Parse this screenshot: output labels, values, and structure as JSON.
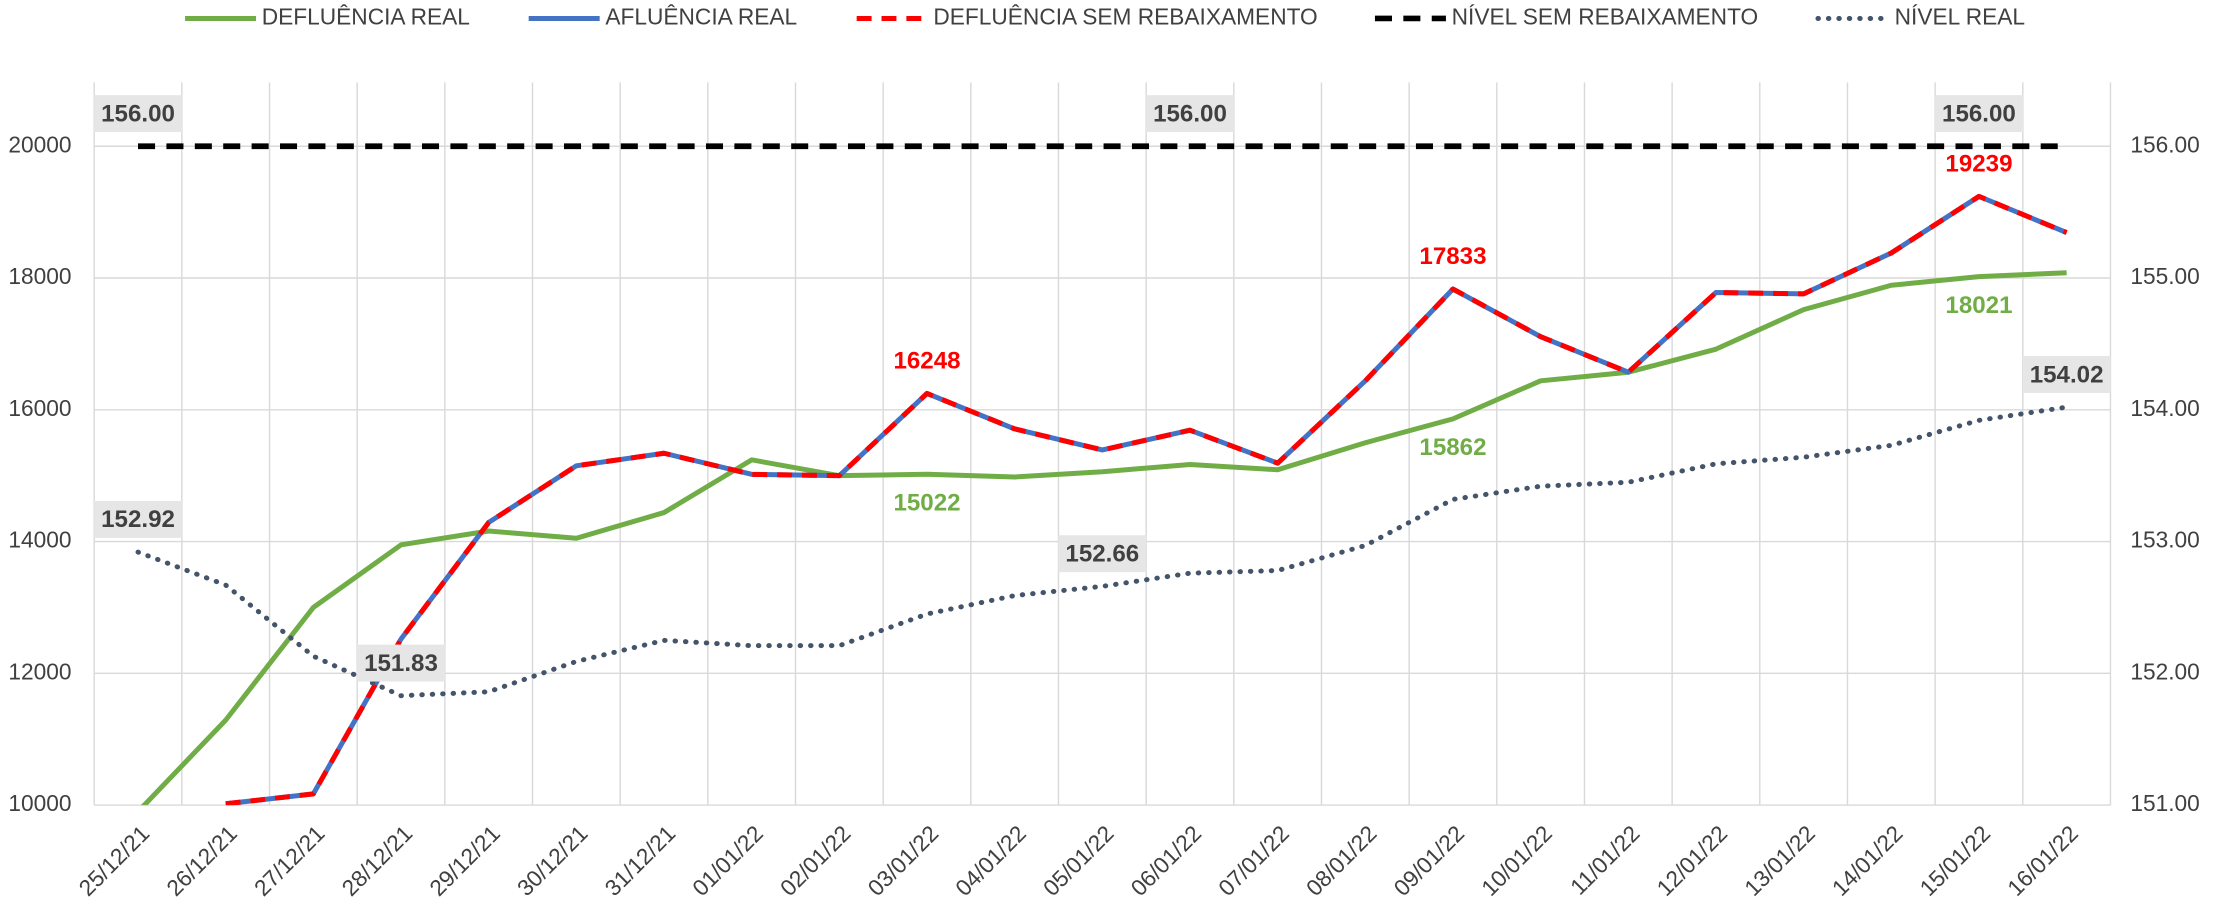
{
  "chart_data": {
    "type": "line",
    "categories": [
      "25/12/21",
      "26/12/21",
      "27/12/21",
      "28/12/21",
      "29/12/21",
      "30/12/21",
      "31/12/21",
      "01/01/22",
      "02/01/22",
      "03/01/22",
      "04/01/22",
      "05/01/22",
      "06/01/22",
      "07/01/22",
      "08/01/22",
      "09/01/22",
      "10/01/22",
      "11/01/22",
      "12/01/22",
      "13/01/22",
      "14/01/22",
      "15/01/22",
      "16/01/22"
    ],
    "ylim": [
      10000,
      20000
    ],
    "yticks": [
      10000,
      12000,
      14000,
      16000,
      18000,
      20000
    ],
    "y2lim": [
      151,
      156
    ],
    "y2ticks": [
      {
        "value": 151,
        "label": "151.00"
      },
      {
        "value": 152,
        "label": "152.00"
      },
      {
        "value": 153,
        "label": "153.00"
      },
      {
        "value": 154,
        "label": "154.00"
      },
      {
        "value": 155,
        "label": "155.00"
      },
      {
        "value": 156,
        "label": "156.00"
      }
    ],
    "grid": true,
    "legend": "top",
    "series": [
      {
        "name": "DEFLUÊNCIA REAL",
        "color": "#70ad47",
        "dash": "solid",
        "values": [
          9900,
          11290,
          13000,
          13950,
          14160,
          14050,
          14440,
          15240,
          15000,
          15022,
          14980,
          15060,
          15170,
          15090,
          15500,
          15862,
          16440,
          16570,
          16920,
          17520,
          17890,
          18021,
          18080
        ],
        "value_labels": [
          null,
          null,
          null,
          null,
          null,
          null,
          null,
          null,
          null,
          "15022",
          null,
          null,
          null,
          null,
          null,
          "15862",
          null,
          null,
          null,
          null,
          null,
          "18021",
          null
        ],
        "label_position": "below"
      },
      {
        "name": "AFLUÊNCIA REAL",
        "color": "#4472c4",
        "dash": "solid",
        "values": [
          null,
          10020,
          10170,
          12520,
          14290,
          15150,
          15340,
          15020,
          15000,
          16248,
          15710,
          15390,
          15690,
          15190,
          16440,
          17833,
          17110,
          16570,
          17780,
          17760,
          18380,
          19239,
          18690
        ]
      },
      {
        "name": "DEFLUÊNCIA SEM REBAIXAMENTO",
        "color": "#ff0000",
        "dash": "dashed",
        "values": [
          null,
          10020,
          10170,
          12520,
          14290,
          15150,
          15340,
          15020,
          15000,
          16248,
          15710,
          15390,
          15690,
          15190,
          16440,
          17833,
          17110,
          16570,
          17780,
          17760,
          18380,
          19239,
          18690
        ],
        "value_labels": [
          null,
          null,
          null,
          null,
          null,
          null,
          null,
          null,
          null,
          "16248",
          null,
          null,
          null,
          null,
          null,
          "17833",
          null,
          null,
          null,
          null,
          null,
          "19239",
          null
        ],
        "label_position": "above"
      },
      {
        "name": "NÍVEL SEM REBAIXAMENTO",
        "color": "#000000",
        "dash": "dashed",
        "axis": "y2",
        "values": [
          156,
          156,
          156,
          156,
          156,
          156,
          156,
          156,
          156,
          156,
          156,
          156,
          156,
          156,
          156,
          156,
          156,
          156,
          156,
          156,
          156,
          156,
          156
        ],
        "value_labels": [
          "156.00",
          null,
          null,
          null,
          null,
          null,
          null,
          null,
          null,
          null,
          null,
          null,
          "156.00",
          null,
          null,
          null,
          null,
          null,
          null,
          null,
          null,
          "156.00",
          null
        ],
        "label_position": "above",
        "label_box": "#e7e6e6"
      },
      {
        "name": "NÍVEL REAL",
        "color": "#44546a",
        "dash": "dotted",
        "axis": "y2",
        "values": [
          152.92,
          152.67,
          152.13,
          151.83,
          151.86,
          152.09,
          152.25,
          152.21,
          152.21,
          152.45,
          152.59,
          152.66,
          152.76,
          152.78,
          152.97,
          153.32,
          153.42,
          153.45,
          153.59,
          153.64,
          153.73,
          153.92,
          154.02
        ],
        "value_labels": [
          "152.92",
          null,
          null,
          "151.83",
          null,
          null,
          null,
          null,
          null,
          null,
          null,
          "152.66",
          null,
          null,
          null,
          null,
          null,
          null,
          null,
          null,
          null,
          null,
          "154.02"
        ],
        "label_position": "above",
        "label_box": "#e7e6e6"
      }
    ]
  }
}
